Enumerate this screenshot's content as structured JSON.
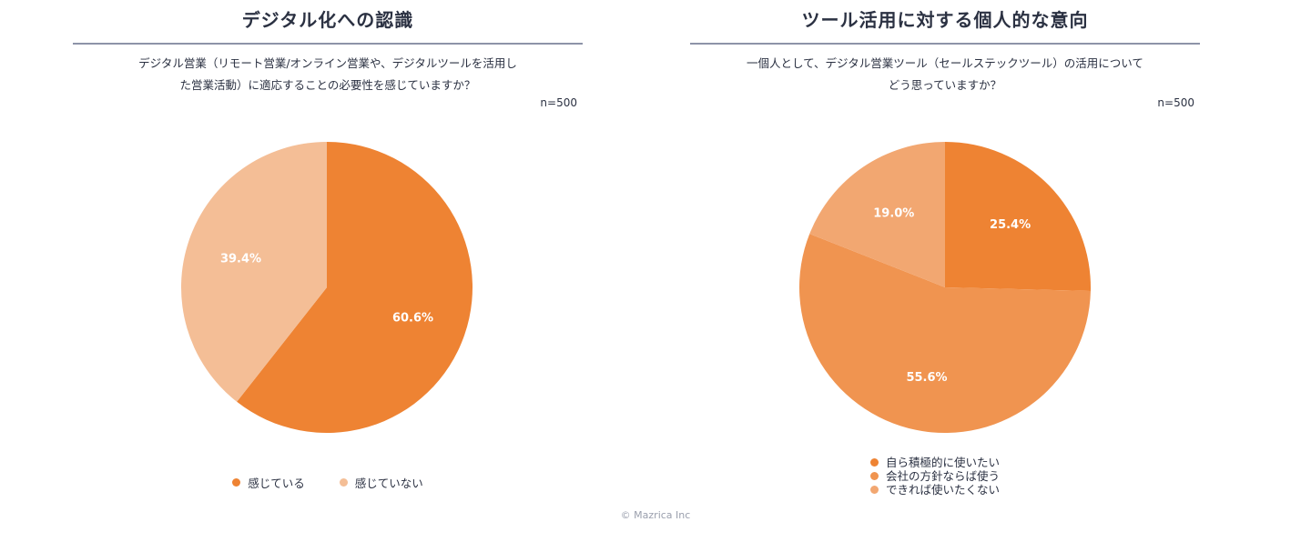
{
  "chart_data": [
    {
      "type": "pie",
      "title": "デジタル化への認識",
      "question_lines": [
        "デジタル営業（リモート営業/オンライン営業や、デジタルツールを活用し",
        "た営業活動）に適応することの必要性を感じていますか？"
      ],
      "n_label": "n=500",
      "slices": [
        {
          "label": "感じている",
          "value": 60.6,
          "value_label": "60.6%",
          "color": "#ee8333"
        },
        {
          "label": "感じていない",
          "value": 39.4,
          "value_label": "39.4%",
          "color": "#f4be96"
        }
      ],
      "legend_position": "bottom-center"
    },
    {
      "type": "pie",
      "title": "ツール活用に対する個人的な意向",
      "question_lines": [
        "一個人として、デジタル営業ツール（セールステックツール）の活用について",
        "どう思っていますか？"
      ],
      "n_label": "n=500",
      "slices": [
        {
          "label": "自ら積極的に使いたい",
          "value": 25.4,
          "value_label": "25.4%",
          "color": "#ee8333"
        },
        {
          "label": "会社の方針ならば使う",
          "value": 55.6,
          "value_label": "55.6%",
          "color": "#f09450"
        },
        {
          "label": "できれば使いたくない",
          "value": 19.0,
          "value_label": "19.0%",
          "color": "#f2a771"
        }
      ],
      "legend_position": "bottom-center"
    }
  ],
  "footer": {
    "copyright": "© Mazrica Inc"
  }
}
